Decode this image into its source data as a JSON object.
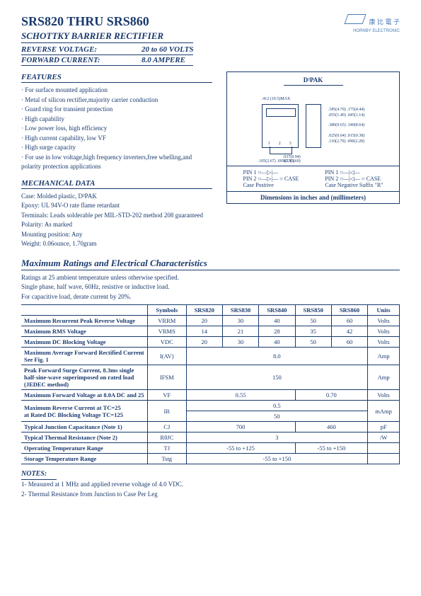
{
  "header": {
    "title": "SRS820 THRU SRS860",
    "subtitle": "SCHOTTKY BARRIER RECTIFIER",
    "reverse_voltage_label": "REVERSE VOLTAGE:",
    "reverse_voltage_value": "20 to 60 VOLTS",
    "forward_current_label": "FORWARD CURRENT:",
    "forward_current_value": "8.0 AMPERE",
    "company": "康 比 電 子",
    "company_en": "HORNBY ELECTRONIC"
  },
  "features": {
    "title": "FEATURES",
    "items": [
      "· For surface mounted application",
      "· Metal of silicon rectifier,majority carrier conduction",
      "· Guard ring for transient protection",
      "· High capability",
      "· Low power loss, high efficiency",
      "· High current capability, low VF",
      "· High surge capacity",
      "· For use in low voltage,high frequency inverters,free whelling,and polarity protection applications"
    ]
  },
  "mechanical": {
    "title": "MECHANICAL DATA",
    "items": [
      "Case: Molded plastic, D²PAK",
      "Epoxy: UL 94V-O rate flame retardant",
      "Terminals: Leads solderable per MIL-STD-202 method 208 guaranteed",
      "Polarity: As marked",
      "Mounting position: Any",
      "Weight: 0.06ounce, 1.70gram"
    ]
  },
  "package": {
    "title": "D²PAK",
    "pin1_label": "PIN 1",
    "pin2_label": "PIN 2",
    "case_label": "CASE",
    "case_positive": "Case Positive",
    "case_negative": "Case Negative Suffix \"R\"",
    "dims_caption": "Dimensions in inches and (millimeters)",
    "dim_labels": [
      ".185(4.70) .175(4.44)",
      ".055(1.40) .045(1.14)",
      ".380(9.65) .340(8.64)",
      ".025(0.64) .015(0.38)",
      ".110(2.79) .090(2.28)",
      ".412 (10.5)MAX",
      ".625(15.88) .575(14.6)",
      ".105(2.67) .095(2.41)",
      ".037(0.94) .027(0.69)"
    ]
  },
  "ratings": {
    "title": "Maximum Ratings and Electrical Characteristics",
    "intro1": "Ratings at 25    ambient temperature unless otherwise specified.",
    "intro2": "Single phase, half wave, 60Hz, resistive or inductive load.",
    "intro3": "For capacitive load, derate current by 20%.",
    "columns": [
      "Symbols",
      "SRS820",
      "SRS830",
      "SRS840",
      "SRS850",
      "SRS860",
      "Units"
    ],
    "rows": [
      {
        "param": "Maximum Recurrent Peak Reverse Voltage",
        "sym": "VRRM",
        "vals": [
          "20",
          "30",
          "40",
          "50",
          "60"
        ],
        "unit": "Volts",
        "split": 5
      },
      {
        "param": "Maximum RMS Voltage",
        "sym": "VRMS",
        "vals": [
          "14",
          "21",
          "28",
          "35",
          "42"
        ],
        "unit": "Volts",
        "split": 5
      },
      {
        "param": "Maximum DC Blocking Voltage",
        "sym": "VDC",
        "vals": [
          "20",
          "30",
          "40",
          "50",
          "60"
        ],
        "unit": "Volts",
        "split": 5
      },
      {
        "param": "Maximum Average Forward Rectified Current See Fig. 1",
        "sym": "I(AV)",
        "vals": [
          "8.0"
        ],
        "unit": "Amp",
        "split": 1
      },
      {
        "param": "Peak Forward Surge Current, 8.3ms single half-sine-wave superimposed on rated load (JEDEC method)",
        "sym": "IFSM",
        "vals": [
          "150"
        ],
        "unit": "Amp",
        "split": 1
      },
      {
        "param": "Maximum Forward Voltage at 8.0A DC and 25",
        "sym": "VF",
        "vals": [
          "0.55",
          "0.70"
        ],
        "unit": "Volts",
        "split": 2,
        "spans": [
          3,
          2
        ]
      },
      {
        "param": "Maximum Reverse Current       at TC=25\nat Rated DC Blocking Voltage       TC=125",
        "sym": "IR",
        "vals": [
          "0.5",
          "50"
        ],
        "unit": "mAmp",
        "split": "stack"
      },
      {
        "param": "Typical Junction Capacitance (Note 1)",
        "sym": "CJ",
        "vals": [
          "700",
          "460"
        ],
        "unit": "pF",
        "split": 2,
        "spans": [
          3,
          2
        ]
      },
      {
        "param": "Typical Thermal Resistance (Note 2)",
        "sym": "RθJC",
        "vals": [
          "3"
        ],
        "unit": "/W",
        "split": 1
      },
      {
        "param": "Operating Temperature Range",
        "sym": "TJ",
        "vals": [
          "-55 to +125",
          "-55 to +150"
        ],
        "unit": "",
        "split": 2,
        "spans": [
          3,
          2
        ]
      },
      {
        "param": "Storage Temperature Range",
        "sym": "Tstg",
        "vals": [
          "-55 to +150"
        ],
        "unit": "",
        "split": 1
      }
    ]
  },
  "notes": {
    "title": "NOTES:",
    "items": [
      "1- Measured at 1 MHz and applied reverse voltage of 4.0 VDC.",
      "2- Thermal Resistance from Junction to Case Per Leg"
    ]
  },
  "style": {
    "text_color": "#1a3a6e",
    "border_color": "#1a3a6e",
    "background": "#ffffff",
    "logo_color": "#4a7ab8"
  }
}
